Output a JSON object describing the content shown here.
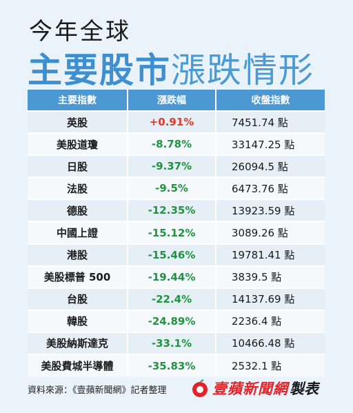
{
  "header": {
    "line1": "今年全球",
    "line2_bold": "主要股市",
    "line2_light": "漲跌情形"
  },
  "table": {
    "columns": [
      "主要指數",
      "漲跌幅",
      "收盤指數"
    ],
    "rows": [
      {
        "name": "英股",
        "change": "+0.91%",
        "close": "7451.74 點",
        "direction": "up"
      },
      {
        "name": "美股道瓊",
        "change": "-8.78%",
        "close": "33147.25 點",
        "direction": "down"
      },
      {
        "name": "日股",
        "change": "-9.37%",
        "close": "26094.5 點",
        "direction": "down"
      },
      {
        "name": "法股",
        "change": "-9.5%",
        "close": "6473.76 點",
        "direction": "down"
      },
      {
        "name": "德股",
        "change": "-12.35%",
        "close": "13923.59 點",
        "direction": "down"
      },
      {
        "name": "中國上證",
        "change": "-15.12%",
        "close": "3089.26 點",
        "direction": "down"
      },
      {
        "name": "港股",
        "change": "-15.46%",
        "close": "19781.41 點",
        "direction": "down"
      },
      {
        "name": "美股標普 500",
        "change": "-19.44%",
        "close": "3839.5 點",
        "direction": "down"
      },
      {
        "name": "台股",
        "change": "-22.4%",
        "close": "14137.69 點",
        "direction": "down"
      },
      {
        "name": "韓股",
        "change": "-24.89%",
        "close": "2236.4 點",
        "direction": "down"
      },
      {
        "name": "美股納斯達克",
        "change": "-33.1%",
        "close": "10466.48 點",
        "direction": "down"
      },
      {
        "name": "美股費城半導體",
        "change": "-35.83%",
        "close": "2532.1 點",
        "direction": "down"
      }
    ]
  },
  "footer": {
    "source": "資料來源：《壹蘋新聞網》記者整理",
    "brand_name": "壹蘋新聞網",
    "brand_suffix": "製表",
    "brand_logo_icon": "apple-logo-icon"
  },
  "colors": {
    "accent_blue": "#4c98d2",
    "positive_red": "#e23a2e",
    "negative_green": "#1f9440",
    "brand_red": "#e0242a"
  }
}
